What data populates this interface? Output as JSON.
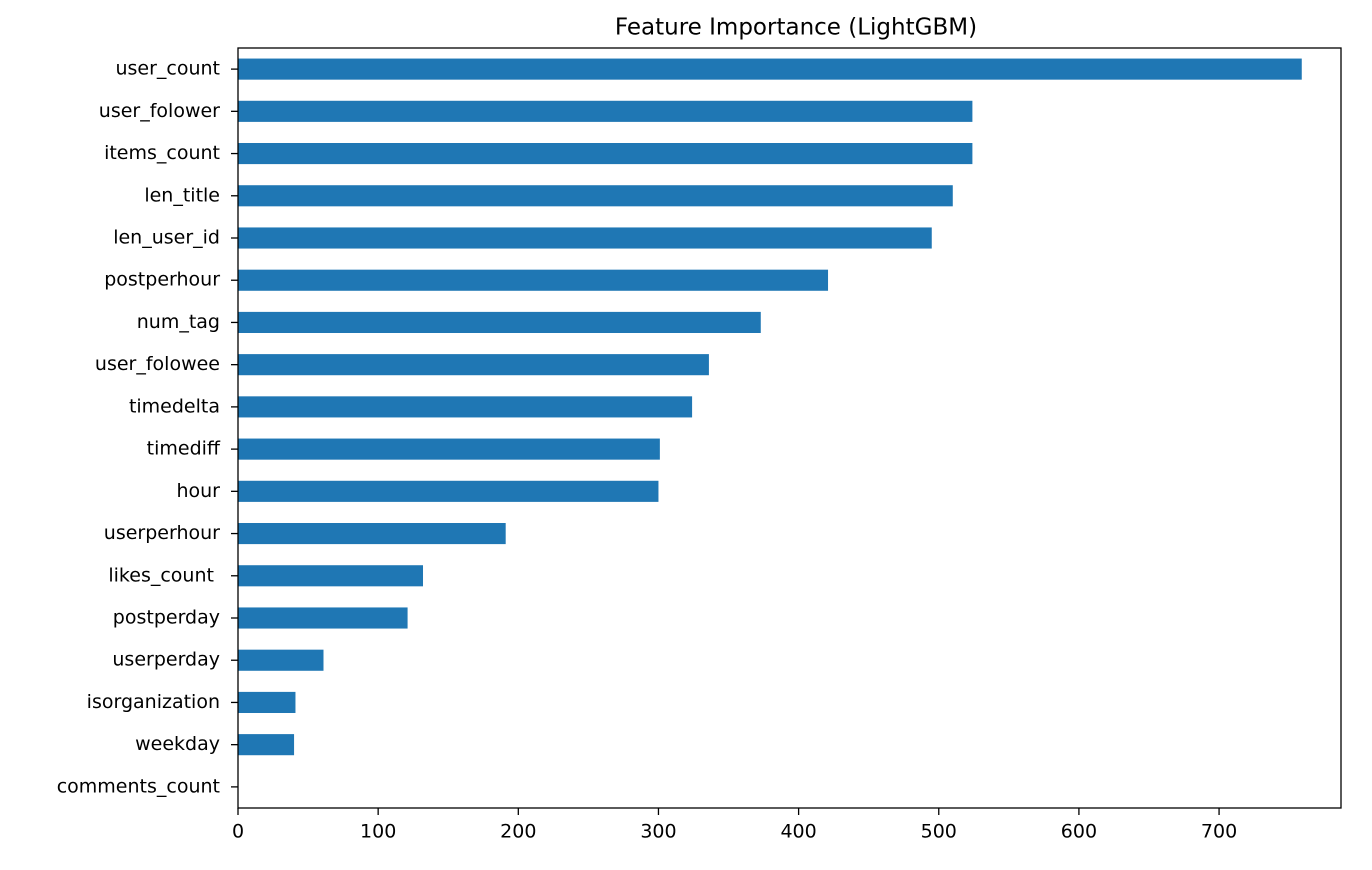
{
  "chart_data": {
    "type": "barh",
    "title": "Feature Importance (LightGBM)",
    "categories": [
      "user_count",
      "user_folower",
      "items_count",
      "len_title",
      "len_user_id",
      "postperhour",
      "num_tag",
      "user_folowee",
      "timedelta",
      "timediff",
      "hour",
      "userperhour",
      "likes_count ",
      "postperday",
      "userperday",
      "isorganization",
      "weekday",
      "comments_count"
    ],
    "values": [
      759,
      524,
      524,
      510,
      495,
      421,
      373,
      336,
      324,
      301,
      300,
      191,
      132,
      121,
      61,
      41,
      40,
      0
    ],
    "color": "#1f77b4",
    "xlim": [
      0,
      787
    ],
    "xticks": [
      0,
      100,
      200,
      300,
      400,
      500,
      600,
      700
    ],
    "grid": false
  }
}
